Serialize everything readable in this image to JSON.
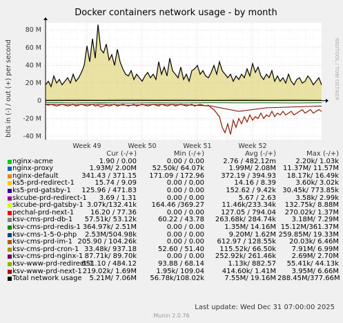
{
  "chart_data": {
    "type": "line",
    "title": "Docker containers network usage - by month",
    "ylabel": "bits in (-) / out (+) per second",
    "ylim": [
      -44,
      88
    ],
    "yticks": [
      -40,
      -20,
      0,
      20,
      40,
      60,
      80
    ],
    "ytick_labels": [
      "-40 M",
      "-20 M",
      "0",
      "20 M",
      "40 M",
      "60 M",
      "80 M"
    ],
    "x_range": [
      0,
      100
    ],
    "xtick_positions": [
      15,
      35,
      55,
      75
    ],
    "xtick_labels": [
      "Week 49",
      "Week 50",
      "Week 51",
      "Week 52"
    ],
    "grid": true,
    "series": [
      {
        "name": "Total network usage",
        "color": "#000000",
        "x": [
          0,
          1,
          2,
          3,
          4,
          5,
          6,
          7,
          8,
          9,
          10,
          11,
          12,
          13,
          14,
          15,
          16,
          17,
          18,
          19,
          20,
          21,
          22,
          23,
          24,
          25,
          26,
          27,
          28,
          29,
          30,
          31,
          32,
          33,
          34,
          35,
          36,
          37,
          38,
          39,
          40,
          41,
          42,
          43,
          44,
          45,
          46,
          47,
          48,
          49,
          50,
          51,
          52,
          53,
          54,
          55,
          56,
          57,
          58,
          59,
          60,
          61,
          62,
          63,
          64,
          65,
          66,
          67,
          68,
          69,
          70,
          71,
          72,
          73,
          74,
          75,
          76,
          77,
          78,
          79,
          80,
          81,
          82,
          83,
          84,
          85,
          86,
          87,
          88,
          89,
          90,
          91,
          92,
          93,
          94,
          95,
          96,
          97,
          98,
          99,
          100
        ],
        "out": [
          18,
          22,
          16,
          28,
          20,
          24,
          18,
          22,
          26,
          20,
          30,
          22,
          26,
          32,
          40,
          62,
          44,
          70,
          48,
          86,
          58,
          54,
          64,
          46,
          52,
          40,
          58,
          44,
          36,
          30,
          28,
          34,
          24,
          30,
          26,
          22,
          28,
          32,
          26,
          30,
          24,
          44,
          30,
          38,
          28,
          48,
          34,
          30,
          26,
          38,
          24,
          30,
          22,
          34,
          36,
          40,
          30,
          34,
          28,
          26,
          32,
          40,
          30,
          44,
          34,
          30,
          26,
          30,
          22,
          28,
          24,
          30,
          26,
          36,
          28,
          42,
          32,
          38,
          28,
          24,
          30,
          26,
          34,
          22,
          28,
          22,
          26,
          20,
          30,
          22,
          18,
          24,
          26,
          20,
          22,
          28,
          24,
          18,
          22,
          26,
          18
        ],
        "in": [
          -4,
          -5,
          -4,
          -5,
          -6,
          -5,
          -4,
          -5,
          -6,
          -5,
          -4,
          -6,
          -5,
          -4,
          -5,
          -6,
          -5,
          -4,
          -6,
          -5,
          -7,
          -6,
          -5,
          -6,
          -5,
          -4,
          -6,
          -5,
          -4,
          -5,
          -6,
          -5,
          -4,
          -6,
          -5,
          -4,
          -5,
          -6,
          -5,
          -4,
          -5,
          -6,
          -4,
          -5,
          -6,
          -5,
          -4,
          -6,
          -5,
          -4,
          -5,
          -6,
          -5,
          -4,
          -6,
          -5,
          -4,
          -5,
          -6,
          -5,
          -8,
          -10,
          -14,
          -18,
          -30,
          -36,
          -26,
          -38,
          -22,
          -30,
          -20,
          -26,
          -18,
          -24,
          -16,
          -22,
          -18,
          -20,
          -14,
          -20,
          -16,
          -18,
          -12,
          -18,
          -14,
          -16,
          -12,
          -16,
          -14,
          -12,
          -16,
          -14,
          -12,
          -10,
          -14,
          -12,
          -10,
          -14,
          -12,
          -10,
          -12
        ]
      },
      {
        "name": "ksv-cms-prd-redis-1",
        "color": "#0D5F0D",
        "x": [
          0,
          10,
          20,
          30,
          40,
          50,
          60,
          70,
          80,
          90,
          100
        ],
        "out": [
          1,
          1.2,
          1,
          1.3,
          1.1,
          1.2,
          1,
          1.3,
          1.1,
          1.2,
          1
        ],
        "in": [
          -2,
          -2.5,
          -2.2,
          -2.6,
          -2.3,
          -2.5,
          -2.2,
          -2.4,
          -2.3,
          -2.5,
          -2.2
        ]
      },
      {
        "name": "ksv-www-prd-next-1",
        "color": "#7A0000",
        "x": [
          0,
          10,
          20,
          30,
          40,
          50,
          60,
          70,
          80,
          90,
          100
        ],
        "out": [
          0.5,
          0.6,
          0.5,
          0.7,
          0.5,
          0.6,
          0.5,
          0.6,
          0.5,
          0.6,
          0.5
        ],
        "in": [
          -4,
          -4.5,
          -4,
          -5,
          -4.2,
          -4.5,
          -6,
          -12,
          -8,
          -7,
          -6
        ]
      }
    ]
  },
  "legend": {
    "headers": [
      "Cur (-/+)",
      "Min (-/+)",
      "Avg (-/+)",
      "Max (-/+)"
    ],
    "rows": [
      {
        "name": "nginx-acme",
        "color": "#00CC00",
        "cur": "1.90 /    0.00",
        "min": "0.00 /    0.00",
        "avg": "2.76 / 482.12m",
        "max": "2.20k/    1.03k"
      },
      {
        "name": "nginx-proxy",
        "color": "#0066B3",
        "cur": "1.93M/   2.00M",
        "min": "52.50k/  64.07k",
        "avg": "1.99M/   2.08M",
        "max": "11.37M/  11.57M"
      },
      {
        "name": "nginx-default",
        "color": "#FF8000",
        "cur": "341.43 / 371.15",
        "min": "171.09 / 172.96",
        "avg": "372.19 / 394.93",
        "max": "18.17k/  16.49k"
      },
      {
        "name": "ks5-prd-redirect-1",
        "color": "#FFCC00",
        "cur": "15.74 /    9.09",
        "min": "0.00 /    0.00",
        "avg": "14.16 /    8.39",
        "max": "3.60k/    3.02k"
      },
      {
        "name": "ks5-prd-gatsby-1",
        "color": "#330099",
        "cur": "125.96 / 471.83",
        "min": "0.00 /    0.00",
        "avg": "152.62 /    9.42k",
        "max": "30.45k/ 773.85k"
      },
      {
        "name": "skcube-prd-redirect-1",
        "color": "#990099",
        "cur": "3.69 /    1.31",
        "min": "0.00 /    0.00",
        "avg": "5.67 /    2.63",
        "max": "3.58k/    2.99k"
      },
      {
        "name": "skcube-prd-gatsby-1",
        "color": "#CCFF00",
        "cur": "3.07k/132.41k",
        "min": "164.46 /369.27",
        "avg": "11.46k/233.34k",
        "max": "132.75k/   8.88M"
      },
      {
        "name": "pechal-prd-next-1",
        "color": "#FF0000",
        "cur": "16.20 /  77.36",
        "min": "0.00 /    0.00",
        "avg": "127.05 / 794.04",
        "max": "270.02k/   1.37M"
      },
      {
        "name": "ksv-cms-prd-db-1",
        "color": "#808080",
        "cur": "57.51k/  53.12k",
        "min": "60.22 /  43.78",
        "avg": "263.68k/ 284.74k",
        "max": "3.18M/   7.29M"
      },
      {
        "name": "ksv-cms-prd-redis-1",
        "color": "#008F00",
        "cur": "364.97k/   2.51M",
        "min": "0.00 /    0.00",
        "avg": "1.35M/  14.16M",
        "max": "15.12M/361.37M"
      },
      {
        "name": "ksv-cms-1-5-0-php",
        "color": "#00487D",
        "cur": "2.53M/504.98k",
        "min": "0.00 /    0.00",
        "avg": "9.20M/   1.62M",
        "max": "259.85M/  19.33M"
      },
      {
        "name": "ksv-cms-prd-im-1",
        "color": "#B35A00",
        "cur": "205.90 / 104.26k",
        "min": "0.00 /    0.00",
        "avg": "612.97 / 128.55k",
        "max": "20.03k/    6.46M"
      },
      {
        "name": "ksv-cms-prd-cron-1",
        "color": "#B38F00",
        "cur": "33.48k/ 937.18",
        "min": "52.60 /  51.40",
        "avg": "115.52k/  66.50k",
        "max": "7.91M/   6.99M"
      },
      {
        "name": "ksv-cms-prd-nginx-1",
        "color": "#6B006B",
        "cur": "87.71k/  89.70k",
        "min": "0.00 /    0.00",
        "avg": "252.92k/ 261.46k",
        "max": "2.69M/   2.70M"
      },
      {
        "name": "ksv-www-prd-redirect-1",
        "color": "#8FB300",
        "cur": "651.10 / 484.12",
        "min": "93.88 /  68.14",
        "avg": "1.13k/ 882.57",
        "max": "55.41k/  44.13k"
      },
      {
        "name": "ksv-www-prd-next-1",
        "color": "#B30000",
        "cur": "219.02k/   1.69M",
        "min": "1.95k/ 109.04",
        "avg": "414.60k/   1.41M",
        "max": "3.95M/   6.66M"
      },
      {
        "name": "Total network usage",
        "color": "#000000",
        "cur": "5.21M/   7.06M",
        "min": "56.78k/108.02k",
        "avg": "7.55M/  19.16M",
        "max": "288.45M/377.66M"
      }
    ]
  },
  "last_update": "Last update: Wed Dec 31 07:00:00 2025",
  "footer": "Munin 2.0.76",
  "watermark": "RRDTOOL / TOBI OETIKER"
}
